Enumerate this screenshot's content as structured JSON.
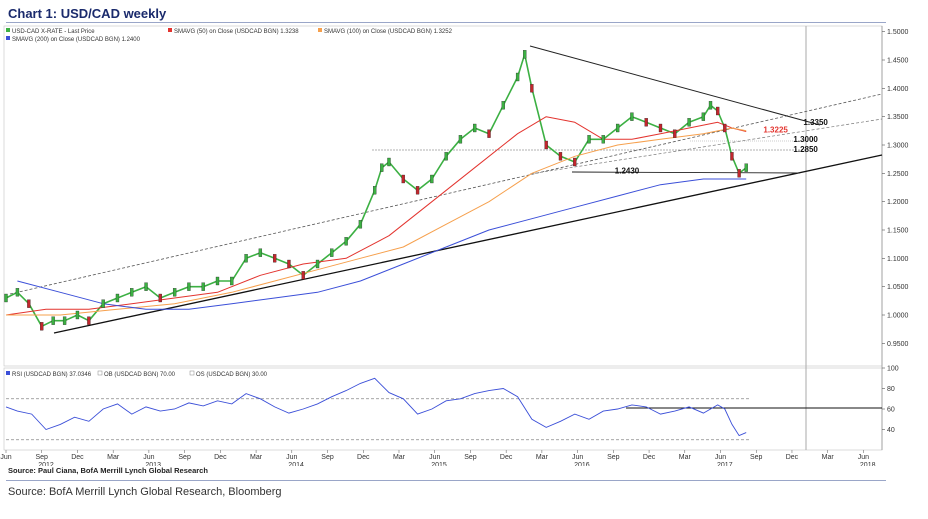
{
  "title": "Chart 1: USD/CAD weekly",
  "source_inner": "Source: Paul Ciana, BofA Merrill Lynch Global Research",
  "source_outer": "Source: BofA Merrill Lynch Global Research, Bloomberg",
  "chart_data": [
    {
      "type": "line",
      "legend": [
        {
          "label": "USD-CAD X-RATE - Last Price",
          "color": "#3cb043"
        },
        {
          "label": "SMAVG (50) on Close (USDCAD BGN) 1.3238",
          "color": "#e3342f"
        },
        {
          "label": "SMAVG (100) on Close (USDCAD BGN) 1.3252",
          "color": "#f6a04d"
        },
        {
          "label": "SMAVG (200) on Close (USDCAD BGN) 1.2400",
          "color": "#3b4fd8"
        }
      ],
      "ylim": [
        0.91,
        1.51
      ],
      "yticks": [
        "1.5000",
        "1.4500",
        "1.4000",
        "1.3500",
        "1.3000",
        "1.2500",
        "1.2000",
        "1.1500",
        "1.1000",
        "1.0500",
        "1.0000",
        "0.9500"
      ],
      "ytick_values": [
        1.5,
        1.45,
        1.4,
        1.35,
        1.3,
        1.25,
        1.2,
        1.15,
        1.1,
        1.05,
        1.0,
        0.95
      ],
      "x_month_labels": [
        "Jun",
        "Sep",
        "Dec",
        "Mar",
        "Jun",
        "Sep",
        "Dec",
        "Mar",
        "Jun",
        "Sep",
        "Dec",
        "Mar",
        "Jun",
        "Sep",
        "Dec",
        "Mar",
        "Jun",
        "Sep",
        "Dec",
        "Mar",
        "Jun",
        "Sep",
        "Dec",
        "Mar",
        "Jun"
      ],
      "x_year_labels": [
        "2012",
        "2013",
        "2014",
        "2015",
        "2016",
        "2017",
        "2018"
      ],
      "x_year_positions": [
        2012.7,
        2013.45,
        2014.45,
        2015.45,
        2016.45,
        2017.45,
        2018.45
      ],
      "x_month_positions": [
        2012.42,
        2012.67,
        2012.92,
        2013.17,
        2013.42,
        2013.67,
        2013.92,
        2014.17,
        2014.42,
        2014.67,
        2014.92,
        2015.17,
        2015.42,
        2015.67,
        2015.92,
        2016.17,
        2016.42,
        2016.67,
        2016.92,
        2017.17,
        2017.42,
        2017.67,
        2017.92,
        2018.17,
        2018.42
      ],
      "xlim": [
        2012.42,
        2018.55
      ],
      "series": [
        {
          "name": "USD-CAD X-RATE - Last Price",
          "x": [
            2012.42,
            2012.5,
            2012.58,
            2012.67,
            2012.75,
            2012.83,
            2012.92,
            2013.0,
            2013.1,
            2013.2,
            2013.3,
            2013.4,
            2013.5,
            2013.6,
            2013.7,
            2013.8,
            2013.9,
            2014.0,
            2014.1,
            2014.2,
            2014.3,
            2014.4,
            2014.5,
            2014.6,
            2014.7,
            2014.8,
            2014.9,
            2015.0,
            2015.05,
            2015.1,
            2015.2,
            2015.3,
            2015.4,
            2015.5,
            2015.6,
            2015.7,
            2015.8,
            2015.9,
            2016.0,
            2016.05,
            2016.1,
            2016.2,
            2016.3,
            2016.4,
            2016.5,
            2016.6,
            2016.7,
            2016.8,
            2016.9,
            2017.0,
            2017.1,
            2017.2,
            2017.3,
            2017.35,
            2017.4,
            2017.45,
            2017.5,
            2017.55,
            2017.6
          ],
          "y": [
            1.03,
            1.04,
            1.02,
            0.98,
            0.99,
            0.99,
            1.0,
            0.99,
            1.02,
            1.03,
            1.04,
            1.05,
            1.03,
            1.04,
            1.05,
            1.05,
            1.06,
            1.06,
            1.1,
            1.11,
            1.1,
            1.09,
            1.07,
            1.09,
            1.11,
            1.13,
            1.16,
            1.22,
            1.26,
            1.27,
            1.24,
            1.22,
            1.24,
            1.28,
            1.31,
            1.33,
            1.32,
            1.37,
            1.42,
            1.46,
            1.4,
            1.3,
            1.28,
            1.27,
            1.31,
            1.31,
            1.33,
            1.35,
            1.34,
            1.33,
            1.32,
            1.34,
            1.35,
            1.37,
            1.36,
            1.33,
            1.28,
            1.25,
            1.26
          ]
        },
        {
          "name": "SMAVG (50) on Close (USDCAD BGN) 1.3238",
          "x": [
            2012.42,
            2012.7,
            2013.0,
            2013.3,
            2013.6,
            2013.9,
            2014.2,
            2014.5,
            2014.8,
            2015.1,
            2015.4,
            2015.7,
            2016.0,
            2016.2,
            2016.4,
            2016.6,
            2016.8,
            2017.0,
            2017.2,
            2017.4,
            2017.5,
            2017.6
          ],
          "y": [
            1.0,
            1.01,
            1.01,
            1.02,
            1.03,
            1.04,
            1.07,
            1.09,
            1.1,
            1.14,
            1.2,
            1.26,
            1.32,
            1.35,
            1.34,
            1.31,
            1.31,
            1.32,
            1.33,
            1.34,
            1.33,
            1.3238
          ]
        },
        {
          "name": "SMAVG (100) on Close (USDCAD BGN) 1.3252",
          "x": [
            2012.42,
            2012.8,
            2013.2,
            2013.6,
            2014.0,
            2014.3,
            2014.6,
            2014.9,
            2015.2,
            2015.5,
            2015.8,
            2016.1,
            2016.4,
            2016.7,
            2017.0,
            2017.3,
            2017.5,
            2017.6
          ],
          "y": [
            1.0,
            1.0,
            1.01,
            1.02,
            1.04,
            1.06,
            1.08,
            1.1,
            1.12,
            1.16,
            1.2,
            1.25,
            1.28,
            1.3,
            1.31,
            1.32,
            1.33,
            1.3252
          ]
        },
        {
          "name": "SMAVG (200) on Close (USDCAD BGN) 1.2400",
          "x": [
            2012.5,
            2012.8,
            2013.1,
            2013.4,
            2013.7,
            2014.0,
            2014.3,
            2014.6,
            2014.9,
            2015.2,
            2015.5,
            2015.8,
            2016.1,
            2016.4,
            2016.7,
            2017.0,
            2017.3,
            2017.6
          ],
          "y": [
            1.06,
            1.04,
            1.02,
            1.01,
            1.01,
            1.02,
            1.03,
            1.04,
            1.06,
            1.09,
            1.12,
            1.15,
            1.17,
            1.19,
            1.21,
            1.23,
            1.24,
            1.24
          ]
        }
      ],
      "annotations": [
        {
          "label": "1.3350",
          "x": 2018.0,
          "y": 1.335
        },
        {
          "label": "1.3225",
          "x": 2017.72,
          "y": 1.3225,
          "color": "#e3342f"
        },
        {
          "label": "1.3000",
          "x": 2017.93,
          "y": 1.305
        },
        {
          "label": "1.2850",
          "x": 2017.93,
          "y": 1.288
        },
        {
          "label": "1.2430",
          "x": 2016.68,
          "y": 1.25
        }
      ]
    },
    {
      "type": "line",
      "legend": [
        {
          "label": "RSI (USDCAD BGN) 37.0346",
          "color": "#3b4fd8"
        },
        {
          "label": "OB (USDCAD BGN) 70.00",
          "color": "#888"
        },
        {
          "label": "OS (USDCAD BGN) 30.00",
          "color": "#888"
        }
      ],
      "ylim": [
        20,
        100
      ],
      "yticks": [
        "100",
        "80",
        "60",
        "40"
      ],
      "ytick_values": [
        100,
        80,
        60,
        40
      ],
      "series": [
        {
          "name": "RSI (USDCAD BGN) 37.0346",
          "x": [
            2012.42,
            2012.5,
            2012.6,
            2012.7,
            2012.8,
            2012.9,
            2013.0,
            2013.1,
            2013.2,
            2013.3,
            2013.4,
            2013.5,
            2013.6,
            2013.7,
            2013.8,
            2013.9,
            2014.0,
            2014.1,
            2014.2,
            2014.3,
            2014.4,
            2014.5,
            2014.6,
            2014.7,
            2014.8,
            2014.9,
            2015.0,
            2015.1,
            2015.2,
            2015.3,
            2015.4,
            2015.5,
            2015.6,
            2015.7,
            2015.8,
            2015.9,
            2016.0,
            2016.1,
            2016.2,
            2016.3,
            2016.4,
            2016.5,
            2016.6,
            2016.7,
            2016.8,
            2016.9,
            2017.0,
            2017.1,
            2017.2,
            2017.3,
            2017.4,
            2017.45,
            2017.5,
            2017.55,
            2017.6
          ],
          "y": [
            62,
            58,
            55,
            40,
            45,
            52,
            48,
            60,
            65,
            55,
            62,
            58,
            60,
            66,
            63,
            68,
            65,
            75,
            70,
            62,
            56,
            60,
            65,
            72,
            78,
            85,
            90,
            76,
            70,
            55,
            60,
            68,
            70,
            75,
            78,
            80,
            72,
            50,
            42,
            48,
            55,
            50,
            58,
            60,
            64,
            62,
            55,
            58,
            62,
            56,
            64,
            60,
            45,
            34,
            37
          ]
        }
      ],
      "levels": [
        {
          "label": "OB",
          "value": 70
        },
        {
          "label": "OS",
          "value": 30
        }
      ]
    }
  ]
}
